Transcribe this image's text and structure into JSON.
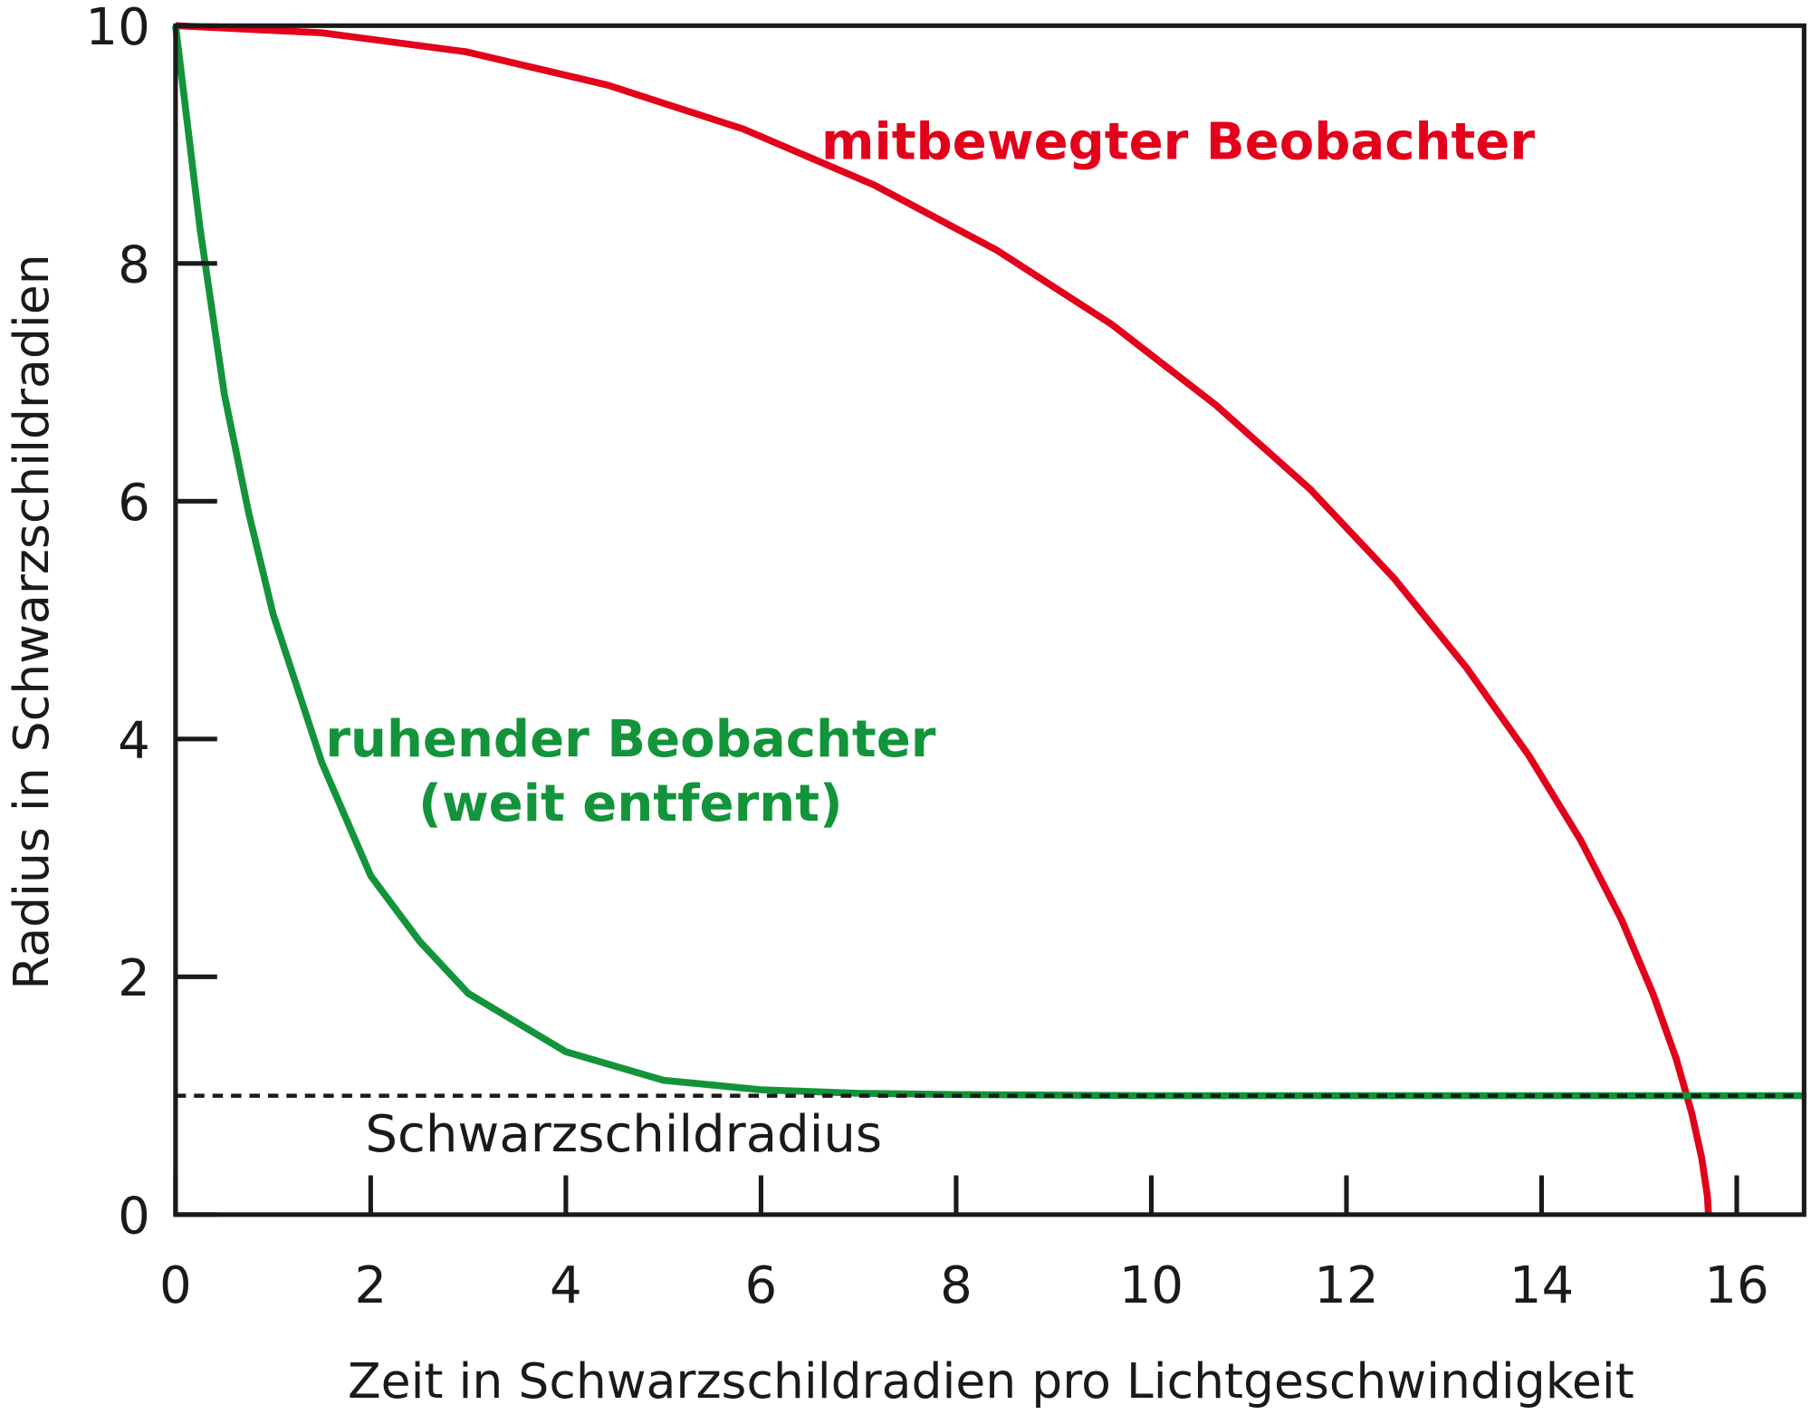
{
  "chart_data": {
    "type": "line",
    "xlabel": "Zeit in Schwarzschildradien pro Lichtgeschwindigkeit",
    "ylabel": "Radius in Schwarzschildradien",
    "xlim": [
      0,
      16.69
    ],
    "ylim": [
      0,
      10
    ],
    "xticks": [
      0,
      2,
      4,
      6,
      8,
      10,
      12,
      14,
      16
    ],
    "yticks": [
      0,
      2,
      4,
      6,
      8,
      10
    ],
    "series": [
      {
        "name": "mitbewegter Beobachter",
        "color": "#e3001b",
        "x": [
          0,
          1.5,
          2.98,
          4.43,
          5.82,
          7.16,
          8.42,
          9.59,
          10.66,
          11.63,
          12.49,
          13.23,
          13.87,
          14.4,
          14.82,
          15.14,
          15.38,
          15.54,
          15.64,
          15.7,
          15.71
        ],
        "values": [
          10,
          9.94,
          9.78,
          9.5,
          9.13,
          8.66,
          8.11,
          7.49,
          6.81,
          6.1,
          5.35,
          4.6,
          3.86,
          3.15,
          2.48,
          1.86,
          1.31,
          0.85,
          0.48,
          0.15,
          0
        ]
      },
      {
        "name": "ruhender Beobachter",
        "color": "#13943a",
        "x": [
          0,
          0.25,
          0.5,
          0.75,
          1,
          1.5,
          2,
          2.5,
          3,
          4,
          5,
          6,
          7,
          8,
          10,
          16.69
        ],
        "values": [
          10,
          8.3,
          6.9,
          5.9,
          5.05,
          3.8,
          2.85,
          2.3,
          1.86,
          1.37,
          1.13,
          1.05,
          1.02,
          1.01,
          1.0,
          1.0
        ]
      }
    ],
    "reference_line": {
      "value": 1,
      "label": "Schwarzschildradius"
    },
    "annotations": [
      "mitbewegter Beobachter",
      "ruhender Beobachter",
      "(weit entfernt)"
    ]
  }
}
